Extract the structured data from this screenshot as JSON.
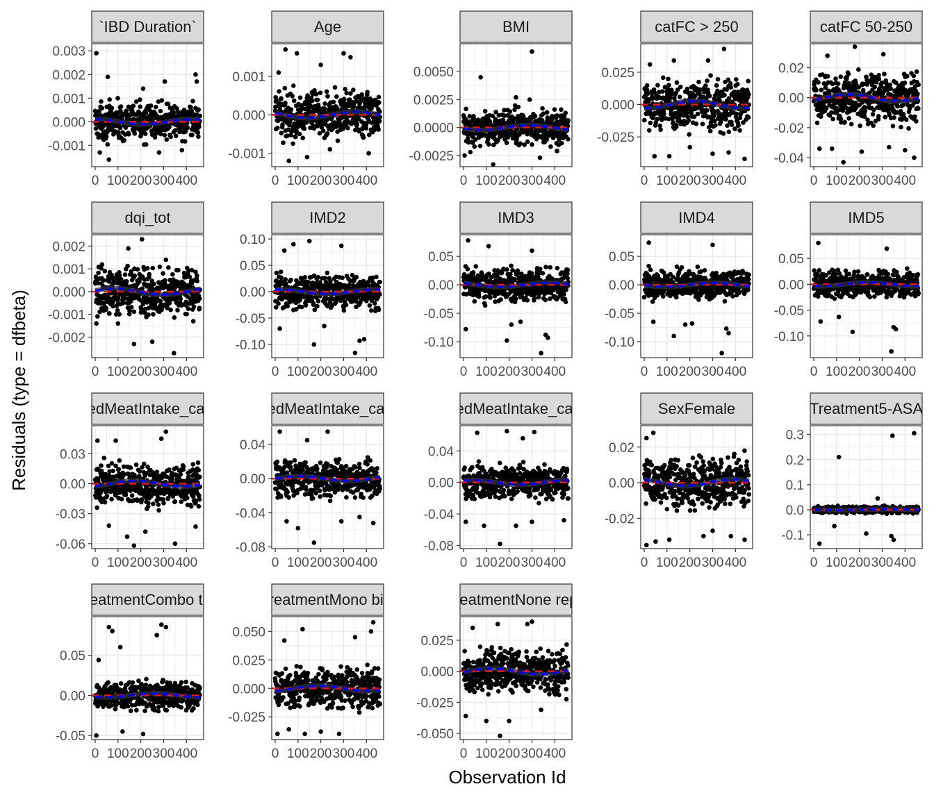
{
  "chart_data": {
    "type": "scatter",
    "title": "",
    "xlabel": "Observation Id",
    "ylabel": "Residuals (type = dfbeta)",
    "x_range": [
      0,
      460
    ],
    "x_ticks": [
      0,
      100,
      200,
      300,
      400
    ],
    "x_tick_labels": [
      "0",
      "100",
      "200",
      "300",
      "400"
    ],
    "n_observations": 460,
    "grid": true,
    "colors": {
      "points": "#000000",
      "smooth": "#333333",
      "zero_line": "#e41a1c",
      "fitted_line": "#0000ff",
      "strip_fill": "#d9d9d9",
      "grid": "#ebebeb"
    },
    "panels": [
      {
        "label": "`IBD Duration`",
        "ylim": [
          -0.0019,
          0.0033
        ],
        "yticks": [
          -0.001,
          0,
          0.001,
          0.002,
          0.003
        ],
        "ytick_labels": [
          "-0.001",
          "0.000",
          "0.001",
          "0.002",
          "0.003"
        ],
        "spread": 0.00045,
        "outliers": [
          [
            5,
            0.0029
          ],
          [
            55,
            0.0019
          ],
          [
            210,
            0.0014
          ],
          [
            305,
            0.0017
          ],
          [
            440,
            0.002
          ],
          [
            445,
            0.0017
          ],
          [
            20,
            -0.0013
          ],
          [
            60,
            -0.0016
          ],
          [
            280,
            -0.0013
          ],
          [
            380,
            -0.0012
          ]
        ]
      },
      {
        "label": "Age",
        "ylim": [
          -0.00135,
          0.00185
        ],
        "yticks": [
          -0.001,
          0,
          0.001
        ],
        "ytick_labels": [
          "-0.001",
          "0.000",
          "0.001"
        ],
        "spread": 0.00035,
        "outliers": [
          [
            45,
            0.0017
          ],
          [
            95,
            0.0016
          ],
          [
            200,
            0.0013
          ],
          [
            300,
            0.0016
          ],
          [
            330,
            0.0015
          ],
          [
            60,
            -0.0012
          ],
          [
            140,
            -0.0011
          ],
          [
            410,
            -0.001
          ],
          [
            240,
            -0.0009
          ],
          [
            15,
            0.0011
          ]
        ]
      },
      {
        "label": "BMI",
        "ylim": [
          -0.0035,
          0.0075
        ],
        "yticks": [
          -0.0025,
          0,
          0.0025,
          0.005
        ],
        "ytick_labels": [
          "-0.0025",
          "0.0000",
          "0.0025",
          "0.0050"
        ],
        "spread": 0.0009,
        "outliers": [
          [
            300,
            0.0068
          ],
          [
            75,
            0.0045
          ],
          [
            230,
            0.0027
          ],
          [
            290,
            0.0025
          ],
          [
            130,
            -0.0033
          ],
          [
            5,
            -0.0025
          ],
          [
            335,
            -0.0027
          ],
          [
            30,
            -0.0022
          ],
          [
            410,
            -0.0021
          ]
        ]
      },
      {
        "label": "catFC > 250",
        "ylim": [
          -0.048,
          0.047
        ],
        "yticks": [
          -0.025,
          0,
          0.025
        ],
        "ytick_labels": [
          "-0.025",
          "0.000",
          "0.025"
        ],
        "spread": 0.012,
        "outliers": [
          [
            350,
            0.043
          ],
          [
            25,
            0.031
          ],
          [
            130,
            0.034
          ],
          [
            280,
            0.034
          ],
          [
            45,
            -0.04
          ],
          [
            110,
            -0.04
          ],
          [
            300,
            -0.038
          ],
          [
            440,
            -0.042
          ],
          [
            370,
            -0.037
          ],
          [
            200,
            -0.033
          ]
        ]
      },
      {
        "label": "catFC 50-250",
        "ylim": [
          -0.046,
          0.036
        ],
        "yticks": [
          -0.04,
          -0.02,
          0,
          0.02
        ],
        "ytick_labels": [
          "-0.04",
          "-0.02",
          "0.00",
          "0.02"
        ],
        "spread": 0.01,
        "outliers": [
          [
            180,
            0.034
          ],
          [
            305,
            0.029
          ],
          [
            60,
            0.028
          ],
          [
            130,
            -0.043
          ],
          [
            440,
            -0.04
          ],
          [
            25,
            -0.034
          ],
          [
            80,
            -0.034
          ],
          [
            210,
            -0.036
          ],
          [
            330,
            -0.033
          ],
          [
            400,
            -0.035
          ]
        ]
      },
      {
        "label": "dqi_tot",
        "ylim": [
          -0.0029,
          0.0025
        ],
        "yticks": [
          -0.002,
          -0.001,
          0,
          0.001,
          0.002
        ],
        "ytick_labels": [
          "-0.002",
          "-0.001",
          "0.000",
          "0.001",
          "0.002"
        ],
        "spread": 0.0006,
        "outliers": [
          [
            205,
            0.0023
          ],
          [
            145,
            0.0019
          ],
          [
            310,
            0.0014
          ],
          [
            170,
            -0.0023
          ],
          [
            250,
            -0.0022
          ],
          [
            345,
            -0.0027
          ],
          [
            5,
            -0.0014
          ],
          [
            430,
            -0.0013
          ],
          [
            100,
            -0.0014
          ]
        ]
      },
      {
        "label": "IMD2",
        "ylim": [
          -0.125,
          0.108
        ],
        "yticks": [
          -0.1,
          -0.05,
          0,
          0.05,
          0.1
        ],
        "ytick_labels": [
          "-0.10",
          "-0.05",
          "0.00",
          "0.05",
          "0.10"
        ],
        "spread": 0.018,
        "outliers": [
          [
            40,
            0.078
          ],
          [
            80,
            0.09
          ],
          [
            150,
            0.096
          ],
          [
            290,
            0.087
          ],
          [
            170,
            -0.1
          ],
          [
            350,
            -0.116
          ],
          [
            370,
            -0.093
          ],
          [
            20,
            -0.07
          ],
          [
            215,
            -0.065
          ],
          [
            390,
            -0.09
          ]
        ]
      },
      {
        "label": "IMD3",
        "ylim": [
          -0.128,
          0.088
        ],
        "yticks": [
          -0.1,
          -0.05,
          0,
          0.05
        ],
        "ytick_labels": [
          "-0.10",
          "-0.05",
          "0.00",
          "0.05"
        ],
        "spread": 0.016,
        "outliers": [
          [
            20,
            0.078
          ],
          [
            110,
            0.068
          ],
          [
            300,
            0.06
          ],
          [
            340,
            -0.12
          ],
          [
            360,
            -0.088
          ],
          [
            370,
            -0.093
          ],
          [
            190,
            -0.098
          ],
          [
            210,
            -0.07
          ],
          [
            10,
            -0.078
          ],
          [
            250,
            -0.065
          ]
        ]
      },
      {
        "label": "IMD4",
        "ylim": [
          -0.128,
          0.088
        ],
        "yticks": [
          -0.1,
          -0.05,
          0,
          0.05
        ],
        "ytick_labels": [
          "-0.10",
          "-0.05",
          "0.00",
          "0.05"
        ],
        "spread": 0.015,
        "outliers": [
          [
            20,
            0.074
          ],
          [
            300,
            0.07
          ],
          [
            340,
            -0.12
          ],
          [
            360,
            -0.077
          ],
          [
            370,
            -0.085
          ],
          [
            180,
            -0.07
          ],
          [
            210,
            -0.068
          ],
          [
            130,
            -0.09
          ],
          [
            40,
            -0.065
          ]
        ]
      },
      {
        "label": "IMD5",
        "ylim": [
          -0.142,
          0.096
        ],
        "yticks": [
          -0.1,
          -0.05,
          0,
          0.05
        ],
        "ytick_labels": [
          "-0.10",
          "-0.05",
          "0.00",
          "0.05"
        ],
        "spread": 0.015,
        "outliers": [
          [
            20,
            0.08
          ],
          [
            320,
            0.069
          ],
          [
            340,
            -0.13
          ],
          [
            350,
            -0.083
          ],
          [
            360,
            -0.087
          ],
          [
            170,
            -0.092
          ],
          [
            30,
            -0.072
          ],
          [
            110,
            -0.063
          ]
        ]
      },
      {
        "label": "redMeatIntake_cat[",
        "ylim": [
          -0.065,
          0.058
        ],
        "yticks": [
          -0.06,
          -0.03,
          0,
          0.03
        ],
        "ytick_labels": [
          "-0.06",
          "-0.03",
          "0.00",
          "0.03"
        ],
        "spread": 0.012,
        "outliers": [
          [
            310,
            0.052
          ],
          [
            90,
            0.043
          ],
          [
            290,
            0.045
          ],
          [
            10,
            0.043
          ],
          [
            170,
            -0.062
          ],
          [
            350,
            -0.06
          ],
          [
            140,
            -0.053
          ],
          [
            440,
            -0.043
          ],
          [
            220,
            -0.048
          ],
          [
            60,
            -0.042
          ]
        ]
      },
      {
        "label": "redMeatIntake_cat[",
        "ylim": [
          -0.082,
          0.062
        ],
        "yticks": [
          -0.08,
          -0.04,
          0,
          0.04
        ],
        "ytick_labels": [
          "-0.08",
          "-0.04",
          "0.00",
          "0.04"
        ],
        "spread": 0.012,
        "outliers": [
          [
            20,
            0.055
          ],
          [
            230,
            0.055
          ],
          [
            140,
            0.045
          ],
          [
            170,
            -0.075
          ],
          [
            50,
            -0.05
          ],
          [
            430,
            -0.052
          ],
          [
            370,
            -0.045
          ],
          [
            100,
            -0.058
          ],
          [
            290,
            -0.05
          ]
        ]
      },
      {
        "label": "redMeatIntake_cat[",
        "ylim": [
          -0.084,
          0.072
        ],
        "yticks": [
          -0.08,
          -0.04,
          0,
          0.04
        ],
        "ytick_labels": [
          "-0.08",
          "-0.04",
          "0.00",
          "0.04"
        ],
        "spread": 0.012,
        "outliers": [
          [
            190,
            0.065
          ],
          [
            310,
            0.064
          ],
          [
            60,
            0.063
          ],
          [
            260,
            0.056
          ],
          [
            160,
            -0.078
          ],
          [
            10,
            -0.05
          ],
          [
            230,
            -0.055
          ],
          [
            300,
            -0.05
          ],
          [
            440,
            -0.048
          ],
          [
            90,
            -0.055
          ]
        ]
      },
      {
        "label": "SexFemale",
        "ylim": [
          -0.037,
          0.032
        ],
        "yticks": [
          -0.02,
          0,
          0.02
        ],
        "ytick_labels": [
          "-0.02",
          "0.00",
          "0.02"
        ],
        "spread": 0.008,
        "outliers": [
          [
            40,
            0.028
          ],
          [
            10,
            0.025
          ],
          [
            440,
            0.018
          ],
          [
            10,
            -0.035
          ],
          [
            50,
            -0.033
          ],
          [
            440,
            -0.032
          ],
          [
            260,
            -0.03
          ],
          [
            110,
            -0.032
          ],
          [
            300,
            -0.027
          ],
          [
            380,
            -0.03
          ]
        ]
      },
      {
        "label": "Treatment5-ASA",
        "ylim": [
          -0.155,
          0.335
        ],
        "yticks": [
          -0.1,
          0,
          0.1,
          0.2,
          0.3
        ],
        "ytick_labels": [
          "-0.1",
          "0.0",
          "0.1",
          "0.2",
          "0.3"
        ],
        "spread": 0.008,
        "outliers": [
          [
            440,
            0.305
          ],
          [
            345,
            0.295
          ],
          [
            110,
            0.21
          ],
          [
            25,
            -0.135
          ],
          [
            350,
            -0.12
          ],
          [
            340,
            -0.105
          ],
          [
            230,
            -0.095
          ],
          [
            90,
            -0.065
          ],
          [
            280,
            0.045
          ]
        ]
      },
      {
        "label": "TreatmentCombo the",
        "ylim": [
          -0.055,
          0.098
        ],
        "yticks": [
          -0.05,
          0,
          0.05
        ],
        "ytick_labels": [
          "-0.05",
          "0.00",
          "0.05"
        ],
        "spread": 0.01,
        "outliers": [
          [
            60,
            0.085
          ],
          [
            75,
            0.08
          ],
          [
            290,
            0.088
          ],
          [
            310,
            0.085
          ],
          [
            270,
            0.075
          ],
          [
            5,
            -0.05
          ],
          [
            210,
            -0.048
          ],
          [
            120,
            -0.045
          ],
          [
            15,
            0.044
          ],
          [
            110,
            0.06
          ]
        ]
      },
      {
        "label": "TreatmentMono biol",
        "ylim": [
          -0.045,
          0.063
        ],
        "yticks": [
          -0.025,
          0,
          0.025,
          0.05
        ],
        "ytick_labels": [
          "-0.025",
          "0.000",
          "0.025",
          "0.050"
        ],
        "spread": 0.01,
        "outliers": [
          [
            430,
            0.058
          ],
          [
            420,
            0.05
          ],
          [
            120,
            0.052
          ],
          [
            40,
            0.042
          ],
          [
            350,
            0.045
          ],
          [
            10,
            -0.04
          ],
          [
            130,
            -0.04
          ],
          [
            280,
            -0.04
          ],
          [
            200,
            -0.038
          ],
          [
            60,
            -0.036
          ]
        ]
      },
      {
        "label": "TreatmentNone repo",
        "ylim": [
          -0.055,
          0.044
        ],
        "yticks": [
          -0.05,
          -0.025,
          0,
          0.025
        ],
        "ytick_labels": [
          "-0.050",
          "-0.025",
          "0.000",
          "0.025"
        ],
        "spread": 0.01,
        "outliers": [
          [
            160,
            -0.052
          ],
          [
            100,
            -0.04
          ],
          [
            200,
            -0.04
          ],
          [
            10,
            -0.036
          ],
          [
            340,
            -0.031
          ],
          [
            150,
            0.038
          ],
          [
            300,
            0.04
          ],
          [
            280,
            0.038
          ],
          [
            40,
            0.035
          ]
        ]
      }
    ]
  }
}
